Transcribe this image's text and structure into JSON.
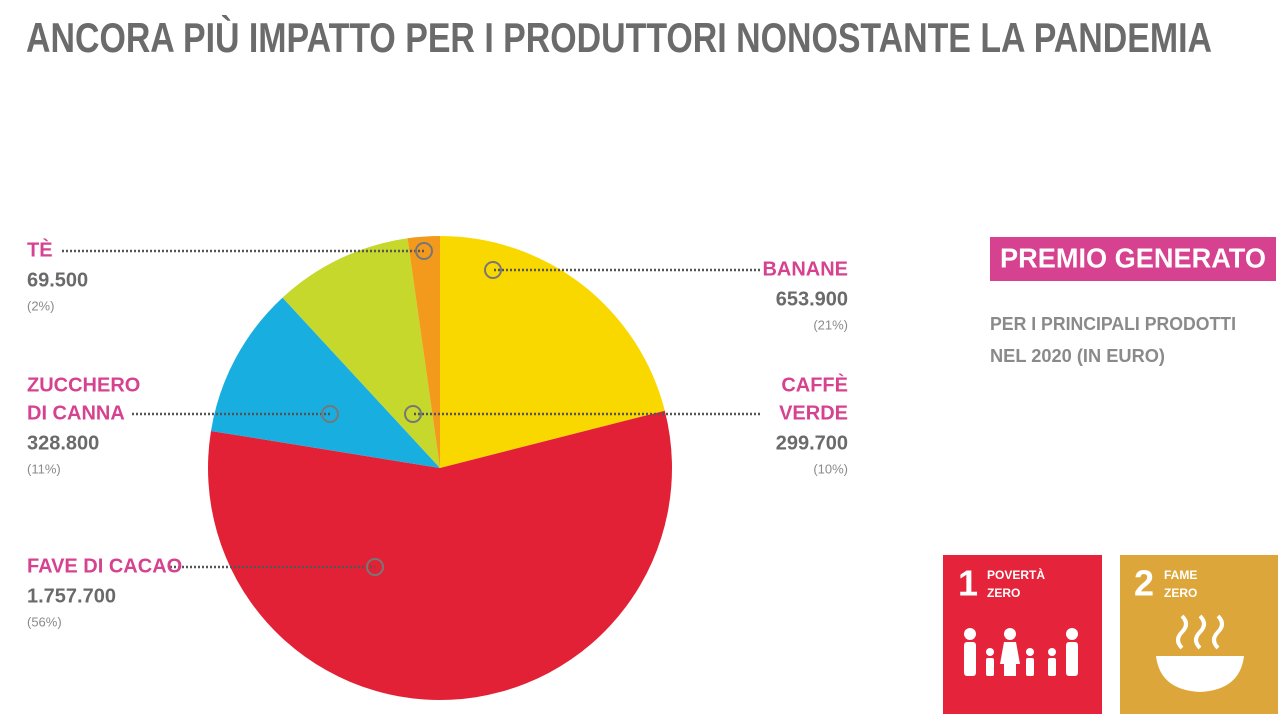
{
  "chart_data": {
    "type": "pie",
    "title": "ANCORA PIÙ IMPATTO PER I PRODUTTORI NONOSTANTE LA PANDEMIA",
    "categories": [
      [
        "BANANE"
      ],
      [
        "FAVE DI CACAO"
      ],
      [
        "ZUCCHERO",
        "DI CANNA"
      ],
      [
        "CAFFÈ",
        "VERDE"
      ],
      [
        "TÈ"
      ]
    ],
    "values": [
      653900,
      1757700,
      328800,
      299700,
      69500
    ],
    "value_labels": [
      "653.900",
      "1.757.700",
      "328.800",
      "299.700",
      "69.500"
    ],
    "percent_labels": [
      "(21%)",
      "(56%)",
      "(11%)",
      "(10%)",
      "(2%)"
    ],
    "colors": [
      "#f9d800",
      "#e32136",
      "#19aee0",
      "#c5d82b",
      "#f39a1c"
    ]
  },
  "side_panel": {
    "heading": "PREMIO GENERATO",
    "subtitle": [
      "PER I PRINCIPALI PRODOTTI",
      "NEL 2020 (IN EURO)"
    ],
    "goals": [
      {
        "number": "1",
        "label": [
          "POVERTÀ",
          "ZERO"
        ]
      },
      {
        "number": "2",
        "label": [
          "FAME",
          "ZERO"
        ]
      }
    ]
  }
}
